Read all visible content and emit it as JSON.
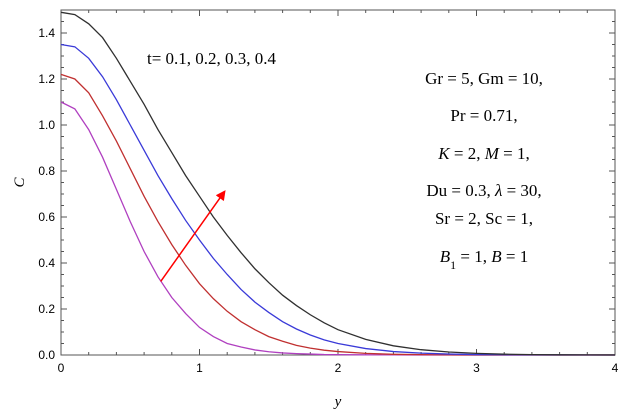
{
  "chart_data": {
    "type": "line",
    "title": "",
    "xlabel": "y",
    "ylabel": "C",
    "xlim": [
      0,
      4
    ],
    "ylim": [
      0,
      1.5
    ],
    "x_ticks": [
      "0",
      "1",
      "2",
      "3",
      "4"
    ],
    "y_ticks": [
      "0.0",
      "0.2",
      "0.4",
      "0.6",
      "0.8",
      "1.0",
      "1.2",
      "1.4"
    ],
    "x": [
      0,
      0.1,
      0.2,
      0.3,
      0.4,
      0.5,
      0.6,
      0.7,
      0.8,
      0.9,
      1.0,
      1.1,
      1.2,
      1.3,
      1.4,
      1.5,
      1.6,
      1.7,
      1.8,
      1.9,
      2.0,
      2.2,
      2.4,
      2.6,
      2.8,
      3.0,
      3.2,
      3.4,
      3.6,
      3.8,
      4.0
    ],
    "series": [
      {
        "color": "#b040c0",
        "values": [
          1.1,
          1.07,
          0.98,
          0.86,
          0.72,
          0.58,
          0.45,
          0.34,
          0.25,
          0.18,
          0.12,
          0.08,
          0.05,
          0.035,
          0.022,
          0.014,
          0.009,
          0.006,
          0.004,
          0.002,
          0.0015,
          0.0008,
          0.0004,
          0.0002,
          0.0001,
          0,
          0,
          0,
          0,
          0,
          0
        ]
      },
      {
        "color": "#c03030",
        "values": [
          1.22,
          1.2,
          1.14,
          1.04,
          0.93,
          0.81,
          0.69,
          0.58,
          0.48,
          0.39,
          0.31,
          0.245,
          0.19,
          0.145,
          0.11,
          0.08,
          0.06,
          0.042,
          0.03,
          0.021,
          0.015,
          0.007,
          0.003,
          0.0015,
          0.0007,
          0.0003,
          0.0001,
          0,
          0,
          0,
          0
        ]
      },
      {
        "color": "#3a3ad8",
        "values": [
          1.35,
          1.34,
          1.29,
          1.21,
          1.11,
          1.0,
          0.89,
          0.78,
          0.68,
          0.585,
          0.5,
          0.42,
          0.35,
          0.285,
          0.23,
          0.185,
          0.145,
          0.113,
          0.087,
          0.066,
          0.05,
          0.028,
          0.015,
          0.008,
          0.004,
          0.002,
          0.001,
          0.0005,
          0.0002,
          0.0001,
          0
        ]
      },
      {
        "color": "#303030",
        "values": [
          1.49,
          1.48,
          1.44,
          1.38,
          1.29,
          1.19,
          1.09,
          0.98,
          0.88,
          0.78,
          0.69,
          0.6,
          0.52,
          0.445,
          0.375,
          0.315,
          0.26,
          0.215,
          0.175,
          0.14,
          0.11,
          0.068,
          0.04,
          0.023,
          0.013,
          0.007,
          0.0035,
          0.0017,
          0.0008,
          0.0004,
          0.0002
        ]
      }
    ],
    "arrow": {
      "from": [
        0.72,
        0.32
      ],
      "to": [
        1.18,
        0.71
      ],
      "color": "#ff0000"
    },
    "annotation_time": "t= 0.1, 0.2, 0.3, 0.4",
    "annotation_params": [
      [
        {
          "t": "Gr = 5, Gm = 10,"
        }
      ],
      [
        {
          "t": "Pr = 0.71,"
        }
      ],
      [
        {
          "t": "K",
          "i": true
        },
        {
          "t": " = 2,  "
        },
        {
          "t": "M",
          "i": true
        },
        {
          "t": " = 1,"
        }
      ],
      [
        {
          "t": "Du = 0.3, "
        },
        {
          "t": "λ",
          "i": true
        },
        {
          "t": " = 30,"
        }
      ],
      [
        {
          "t": "Sr = 2,  Sc = 1,"
        }
      ],
      [
        {
          "t": "B",
          "i": true
        },
        {
          "t": "1",
          "sub": true
        },
        {
          "t": " = 1,  "
        },
        {
          "t": "B",
          "i": true
        },
        {
          "t": " = 1"
        }
      ]
    ],
    "grid": false,
    "legend": "none"
  }
}
